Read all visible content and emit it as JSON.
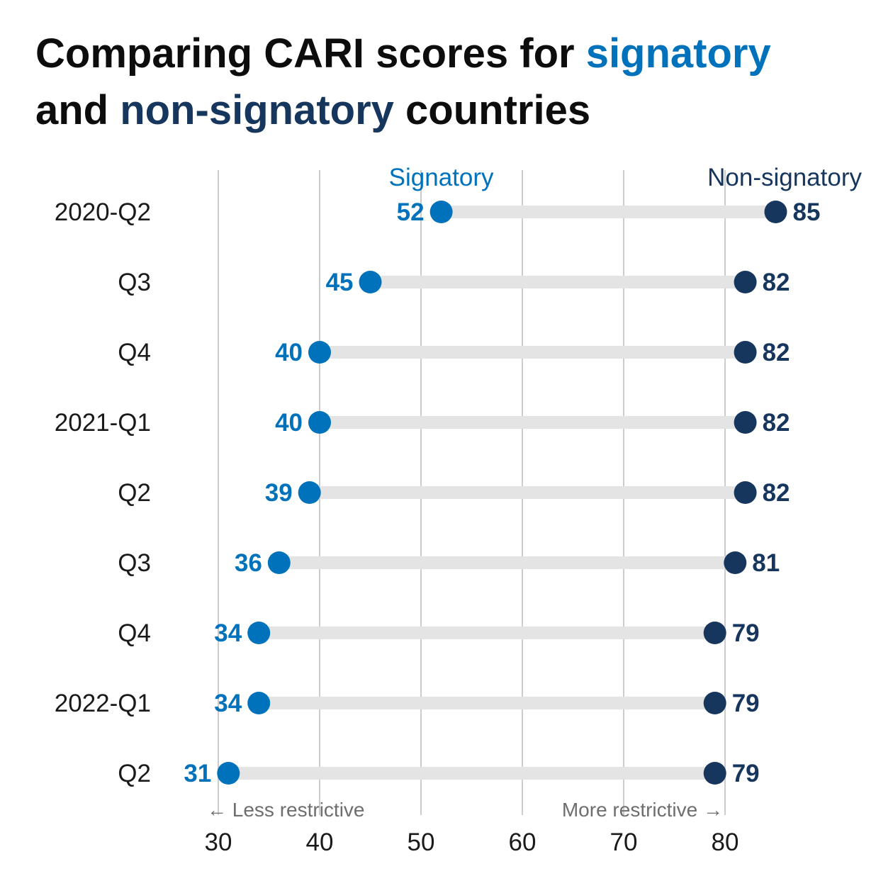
{
  "title": {
    "part1": "Comparing CARI scores for ",
    "signatory": "signatory",
    "part2": "and ",
    "non_signatory": "non-signatory",
    "part3": " countries"
  },
  "colors": {
    "signatory": "#0072bc",
    "non_signatory": "#17365d",
    "connector": "#e4e4e4",
    "gridline": "#cccccc",
    "annotation": "#6e6e6e"
  },
  "chart_data": {
    "type": "dumbbell",
    "categories": [
      "2020-Q2",
      "Q3",
      "Q4",
      "2021-Q1",
      "Q2",
      "Q3",
      "Q4",
      "2022-Q1",
      "Q2"
    ],
    "series": [
      {
        "name": "Signatory",
        "values": [
          52,
          45,
          40,
          40,
          39,
          36,
          34,
          34,
          31
        ]
      },
      {
        "name": "Non-signatory",
        "values": [
          85,
          82,
          82,
          82,
          82,
          81,
          79,
          79,
          79
        ]
      }
    ],
    "x_ticks": [
      30,
      40,
      50,
      60,
      70,
      80
    ],
    "xlim": [
      30,
      85
    ],
    "grid": "vertical",
    "annotations": {
      "left": "← Less restrictive",
      "right": "More restrictive →"
    }
  }
}
